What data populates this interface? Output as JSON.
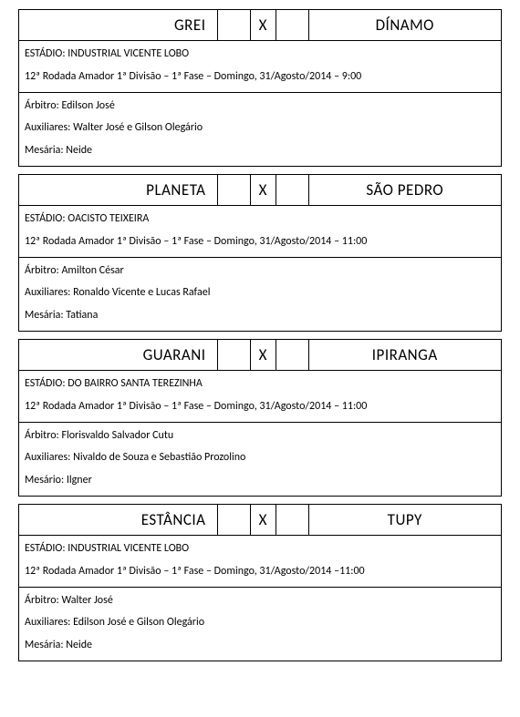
{
  "matches": [
    {
      "home": "GREI",
      "away": "DÍNAMO",
      "vs": "X",
      "stadium": "ESTÁDIO: INDUSTRIAL VICENTE LOBO",
      "round": "12ª Rodada Amador 1ª Divisão – 1ª Fase – Domingo, 31/Agosto/2014 – 9:00",
      "referee": "Árbitro: Edilson José",
      "assistants": "Auxiliares: Walter José e Gilson Olegário",
      "mesario": "Mesária: Neide"
    },
    {
      "home": "PLANETA",
      "away": "SÃO PEDRO",
      "vs": "X",
      "stadium": "ESTÁDIO: OACISTO TEIXEIRA",
      "round": "12ª Rodada Amador 1ª Divisão – 1ª Fase – Domingo, 31/Agosto/2014 – 11:00",
      "referee": "Árbitro: Amilton César",
      "assistants": "Auxiliares: Ronaldo Vicente e Lucas Rafael",
      "mesario": "Mesária: Tatiana"
    },
    {
      "home": "GUARANI",
      "away": "IPIRANGA",
      "vs": "X",
      "stadium": "ESTÁDIO: DO BAIRRO SANTA TEREZINHA",
      "round": "12ª Rodada Amador 1ª Divisão – 1ª Fase – Domingo, 31/Agosto/2014 – 11:00",
      "referee": "Árbitro: Florisvaldo Salvador Cutu",
      "assistants": "Auxiliares: Nivaldo de Souza e Sebastião Prozolino",
      "mesario": "Mesário: Ilgner"
    },
    {
      "home": "ESTÂNCIA",
      "away": "TUPY",
      "vs": "X",
      "stadium": "ESTÁDIO: INDUSTRIAL VICENTE LOBO",
      "round": "12ª Rodada Amador 1ª Divisão – 1ª Fase – Domingo, 31/Agosto/2014 –11:00",
      "referee": "Árbitro: Walter José",
      "assistants": "Auxiliares: Edilson José e Gilson Olegário",
      "mesario": "Mesária: Neide"
    }
  ]
}
